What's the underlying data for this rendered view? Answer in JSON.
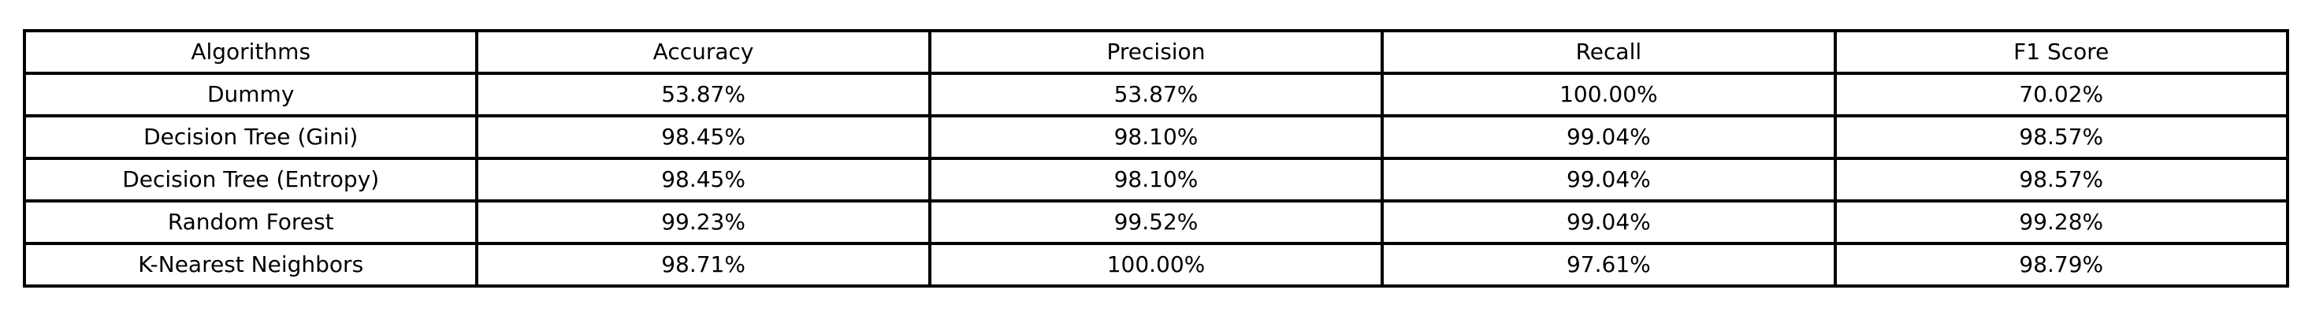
{
  "chart_data": {
    "type": "table",
    "columns": [
      "Algorithms",
      "Accuracy",
      "Precision",
      "Recall",
      "F1 Score"
    ],
    "rows": [
      [
        "Dummy",
        "53.87%",
        "53.87%",
        "100.00%",
        "70.02%"
      ],
      [
        "Decision Tree (Gini)",
        "98.45%",
        "98.10%",
        "99.04%",
        "98.57%"
      ],
      [
        "Decision Tree (Entropy)",
        "98.45%",
        "98.10%",
        "99.04%",
        "98.57%"
      ],
      [
        "Random Forest",
        "99.23%",
        "99.52%",
        "99.04%",
        "99.28%"
      ],
      [
        "K-Nearest Neighbors",
        "98.71%",
        "100.00%",
        "97.61%",
        "98.79%"
      ]
    ],
    "grid": true
  }
}
